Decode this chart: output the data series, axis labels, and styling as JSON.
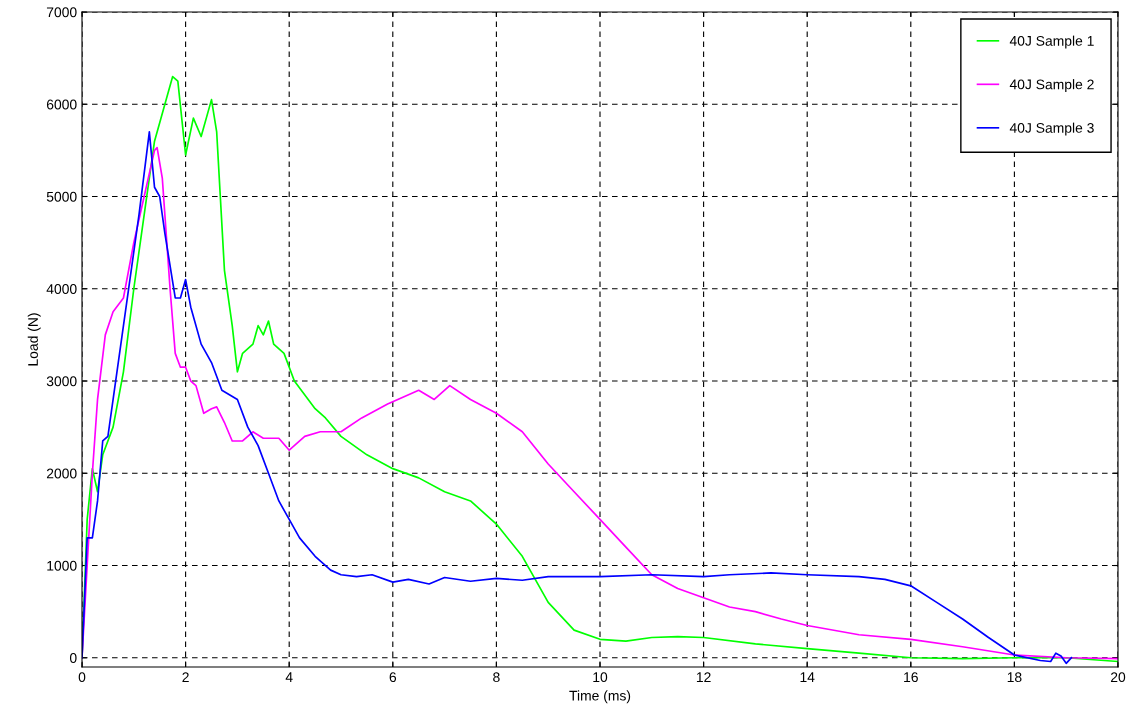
{
  "chart_data": {
    "type": "line",
    "xlabel": "Time (ms)",
    "ylabel": "Load (N)",
    "xlim": [
      0,
      20
    ],
    "ylim": [
      -100,
      7000
    ],
    "xticks": [
      0,
      2,
      4,
      6,
      8,
      10,
      12,
      14,
      16,
      18,
      20
    ],
    "yticks": [
      0,
      1000,
      2000,
      3000,
      4000,
      5000,
      6000,
      7000
    ],
    "grid": true,
    "legend": "top right",
    "line_style": "solid",
    "marker": "none",
    "series": [
      {
        "name": "40J Sample 1",
        "color": "#00ff00",
        "x": [
          0,
          0.1,
          0.2,
          0.3,
          0.4,
          0.6,
          0.8,
          1.0,
          1.2,
          1.4,
          1.6,
          1.75,
          1.85,
          2.0,
          2.15,
          2.3,
          2.5,
          2.6,
          2.75,
          2.9,
          3.0,
          3.1,
          3.3,
          3.4,
          3.5,
          3.6,
          3.7,
          3.9,
          4.1,
          4.5,
          4.7,
          5.0,
          5.5,
          6.0,
          6.5,
          7.0,
          7.5,
          8.0,
          8.5,
          9.0,
          9.5,
          10,
          10.5,
          11,
          11.5,
          12,
          13,
          14,
          15,
          16,
          17,
          18,
          19,
          20
        ],
        "values": [
          0,
          1500,
          2050,
          1800,
          2200,
          2500,
          3100,
          4000,
          4800,
          5600,
          6000,
          6300,
          6250,
          5450,
          5850,
          5650,
          6050,
          5700,
          4200,
          3600,
          3100,
          3300,
          3400,
          3600,
          3500,
          3650,
          3400,
          3300,
          3000,
          2700,
          2600,
          2400,
          2200,
          2050,
          1950,
          1800,
          1700,
          1450,
          1100,
          600,
          300,
          200,
          180,
          220,
          230,
          220,
          150,
          100,
          50,
          0,
          -10,
          0,
          0,
          -40
        ]
      },
      {
        "name": "40J Sample 2",
        "color": "#ff00ff",
        "x": [
          0,
          0.1,
          0.2,
          0.3,
          0.45,
          0.6,
          0.8,
          1.0,
          1.2,
          1.4,
          1.45,
          1.55,
          1.7,
          1.8,
          1.9,
          2.0,
          2.1,
          2.2,
          2.35,
          2.5,
          2.6,
          2.75,
          2.9,
          3.1,
          3.3,
          3.5,
          3.8,
          4.0,
          4.3,
          4.6,
          5.0,
          5.4,
          5.9,
          6.5,
          6.8,
          7.1,
          7.5,
          8.0,
          8.5,
          9.0,
          9.5,
          10,
          10.5,
          11,
          11.5,
          12,
          12.5,
          13,
          13.5,
          14,
          15,
          16,
          17,
          18,
          19,
          20
        ],
        "values": [
          0,
          1000,
          2000,
          2800,
          3500,
          3750,
          3900,
          4500,
          5000,
          5500,
          5530,
          5200,
          4000,
          3300,
          3150,
          3150,
          3000,
          2950,
          2650,
          2700,
          2720,
          2550,
          2350,
          2350,
          2450,
          2380,
          2380,
          2250,
          2400,
          2450,
          2450,
          2600,
          2750,
          2900,
          2800,
          2950,
          2800,
          2650,
          2450,
          2100,
          1800,
          1500,
          1200,
          900,
          750,
          650,
          550,
          500,
          420,
          350,
          250,
          200,
          120,
          30,
          0,
          -10
        ]
      },
      {
        "name": "40J Sample 3",
        "color": "#0000ff",
        "x": [
          0,
          0.1,
          0.2,
          0.3,
          0.4,
          0.5,
          0.7,
          0.9,
          1.1,
          1.3,
          1.4,
          1.5,
          1.6,
          1.8,
          1.9,
          2.0,
          2.1,
          2.3,
          2.5,
          2.7,
          3.0,
          3.2,
          3.4,
          3.6,
          3.8,
          4.0,
          4.2,
          4.5,
          4.8,
          5.0,
          5.3,
          5.6,
          6.0,
          6.3,
          6.7,
          7.0,
          7.5,
          8.0,
          8.5,
          9.0,
          10,
          11,
          12,
          12.5,
          13.3,
          14,
          15,
          15.5,
          16,
          16.5,
          17,
          17.5,
          18,
          18.5,
          18.7,
          18.8,
          18.9,
          19.0,
          19.1
        ],
        "values": [
          0,
          1300,
          1300,
          1700,
          2350,
          2400,
          3200,
          4000,
          4800,
          5700,
          5100,
          5000,
          4600,
          3900,
          3900,
          4100,
          3800,
          3400,
          3200,
          2900,
          2800,
          2500,
          2300,
          2000,
          1700,
          1500,
          1300,
          1100,
          950,
          900,
          880,
          900,
          820,
          850,
          800,
          870,
          830,
          860,
          840,
          880,
          880,
          900,
          880,
          900,
          920,
          900,
          880,
          850,
          780,
          600,
          420,
          220,
          30,
          -30,
          -40,
          50,
          20,
          -60,
          0
        ]
      }
    ]
  }
}
